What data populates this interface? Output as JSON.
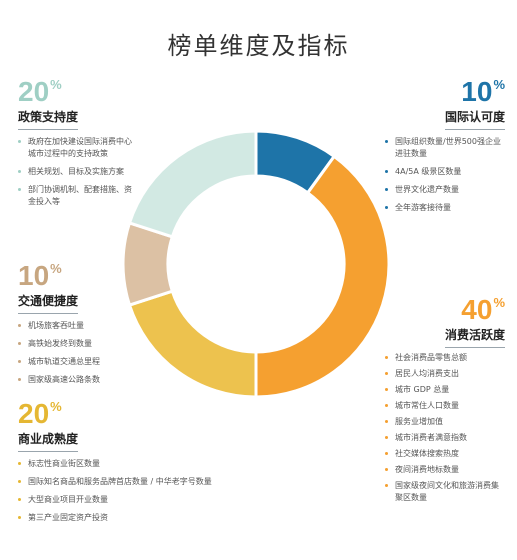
{
  "title": "榜单维度及指标",
  "chart_data": {
    "type": "pie",
    "donut": true,
    "slices": [
      {
        "label": "国际认可度",
        "value": 10,
        "pct_text": "10",
        "color": "#1e74a8",
        "items": [
          "国际组织数量/世界500强企业进驻数量",
          "4A/5A 级景区数量",
          "世界文化遗产数量",
          "全年游客接待量"
        ]
      },
      {
        "label": "消费活跃度",
        "value": 40,
        "pct_text": "40",
        "color": "#f5a030",
        "items": [
          "社会消费品零售总额",
          "居民人均消费支出",
          "城市 GDP 总量",
          "城市常住人口数量",
          "服务业增加值",
          "城市消费者满意指数",
          "社交媒体搜索热度",
          "夜间消费地标数量",
          "国家级夜间文化和旅游消费集聚区数量"
        ]
      },
      {
        "label": "商业成熟度",
        "value": 20,
        "pct_text": "20",
        "color": "#edc24e",
        "items": [
          "标志性商业街区数量",
          "国际知名商品和服务品牌首店数量 / 中华老字号数量",
          "大型商业项目开业数量",
          "第三产业固定资产投资"
        ]
      },
      {
        "label": "交通便捷度",
        "value": 10,
        "pct_text": "10",
        "color": "#dcc1a4",
        "items": [
          "机场旅客吞吐量",
          "高铁始发终到数量",
          "城市轨道交通总里程",
          "国家级高速公路条数"
        ]
      },
      {
        "label": "政策支持度",
        "value": 20,
        "pct_text": "20",
        "color": "#d2e9e3",
        "items": [
          "政府在加快建设国际消费中心城市过程中的支持政策",
          "相关规划、目标及实施方案",
          "部门协调机制、配套措施、资金投入等"
        ]
      }
    ],
    "pct_symbol": "%"
  }
}
